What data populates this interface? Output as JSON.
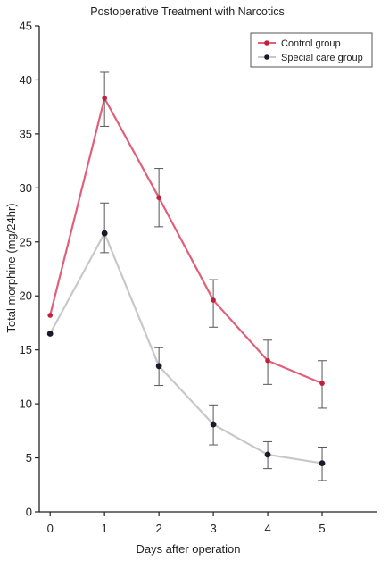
{
  "chart_data": {
    "type": "line",
    "title": "Postoperative Treatment with Narcotics",
    "xlabel": "Days after operation",
    "ylabel": "Total morphine (mg/24hr)",
    "x": [
      0,
      1,
      2,
      3,
      4,
      5
    ],
    "x_ticks": [
      "0",
      "1",
      "2",
      "3",
      "4",
      "5"
    ],
    "y_ticks": [
      "0",
      "5",
      "10",
      "15",
      "20",
      "25",
      "30",
      "35",
      "40",
      "45"
    ],
    "xlim": [
      -0.2,
      6.0
    ],
    "ylim": [
      0,
      45
    ],
    "grid": false,
    "legend_position": "top-right",
    "series": [
      {
        "name": "Control group",
        "color": "#e0607a",
        "marker_color": "#c0203a",
        "values": [
          18.2,
          38.3,
          29.1,
          19.6,
          14.0,
          11.9
        ],
        "err_low": [
          null,
          35.7,
          26.4,
          17.1,
          11.8,
          9.6
        ],
        "err_high": [
          null,
          40.7,
          31.8,
          21.5,
          15.9,
          14.0
        ]
      },
      {
        "name": "Special care group",
        "color": "#c8c8c8",
        "marker_color": "#1a1a2a",
        "values": [
          16.5,
          25.8,
          13.5,
          8.1,
          5.3,
          4.5
        ],
        "err_low": [
          null,
          24.0,
          11.7,
          6.2,
          4.0,
          2.9
        ],
        "err_high": [
          null,
          28.6,
          15.2,
          9.9,
          6.5,
          6.0
        ]
      }
    ]
  }
}
